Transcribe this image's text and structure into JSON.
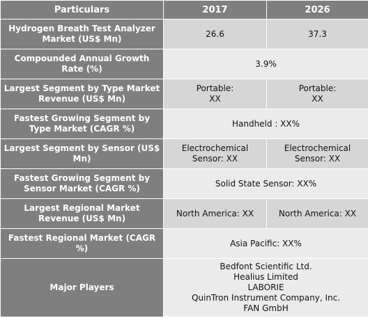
{
  "header": {
    "col1": "Particulars",
    "col2": "2017",
    "col3": "2026"
  },
  "rows": [
    {
      "label": "Hydrogen Breath Test Analyzer Market (US$ Mn)",
      "v2017": "26.6",
      "v2026": "37.3"
    },
    {
      "label": "Compounded Annual Growth Rate (%)",
      "merged": "3.9%"
    },
    {
      "label": "Largest Segment by Type Market Revenue (US$ Mn)",
      "v2017": "Portable:\nXX",
      "v2026": "Portable:\nXX"
    },
    {
      "label": "Fastest Growing Segment by Type Market (CAGR %)",
      "merged": "Handheld :  XX%"
    },
    {
      "label": "Largest Segment by Sensor (US$ Mn)",
      "v2017": "Electrochemical Sensor: XX",
      "v2026": "Electrochemical Sensor:  XX"
    },
    {
      "label": "Fastest Growing Segment by Sensor Market (CAGR %)",
      "merged": "Solid State Sensor:  XX%"
    },
    {
      "label": "Largest Regional Market Revenue (US$ Mn)",
      "v2017": "North America: XX",
      "v2026": "North America: XX"
    },
    {
      "label": "Fastest Regional Market (CAGR %)",
      "merged": "Asia Pacific: XX%"
    },
    {
      "label": "Major Players",
      "merged": "Bedfont Scientific Ltd.\nHealius Limited\nLABORIE\nQuinTron Instrument Company, Inc.\nFAN GmbH"
    }
  ],
  "colors": {
    "label_bg": "#7f7f7f",
    "value_dark_bg": "#d6d6d6",
    "value_light_bg": "#ebebeb"
  }
}
